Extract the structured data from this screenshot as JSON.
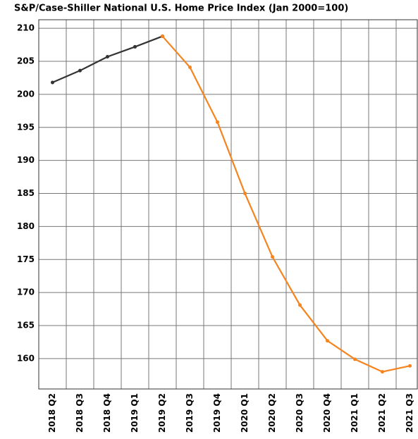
{
  "chart_data": {
    "type": "line",
    "title": "S&P/Case-Shiller National U.S. Home Price Index (Jan 2000=100)",
    "categories": [
      "2018 Q2",
      "2018 Q3",
      "2018 Q4",
      "2019 Q1",
      "2019 Q2",
      "2019 Q3",
      "2019 Q4",
      "2020 Q1",
      "2020 Q2",
      "2020 Q3",
      "2020 Q4",
      "2021 Q1",
      "2021 Q2",
      "2021 Q3"
    ],
    "series": [
      {
        "color": "#333333",
        "values": [
          201.8,
          203.6,
          205.7,
          207.2,
          208.8,
          null,
          null,
          null,
          null,
          null,
          null,
          null,
          null,
          null
        ]
      },
      {
        "color": "#f5841f",
        "values": [
          null,
          null,
          null,
          null,
          208.8,
          204.1,
          195.8,
          185.0,
          175.4,
          168.1,
          162.7,
          159.9,
          158.0,
          158.9
        ]
      }
    ],
    "ylim": [
      155.4,
      211.3
    ],
    "yticks": [
      160,
      165,
      170,
      175,
      180,
      185,
      190,
      195,
      200,
      205,
      210
    ],
    "grid": true
  }
}
